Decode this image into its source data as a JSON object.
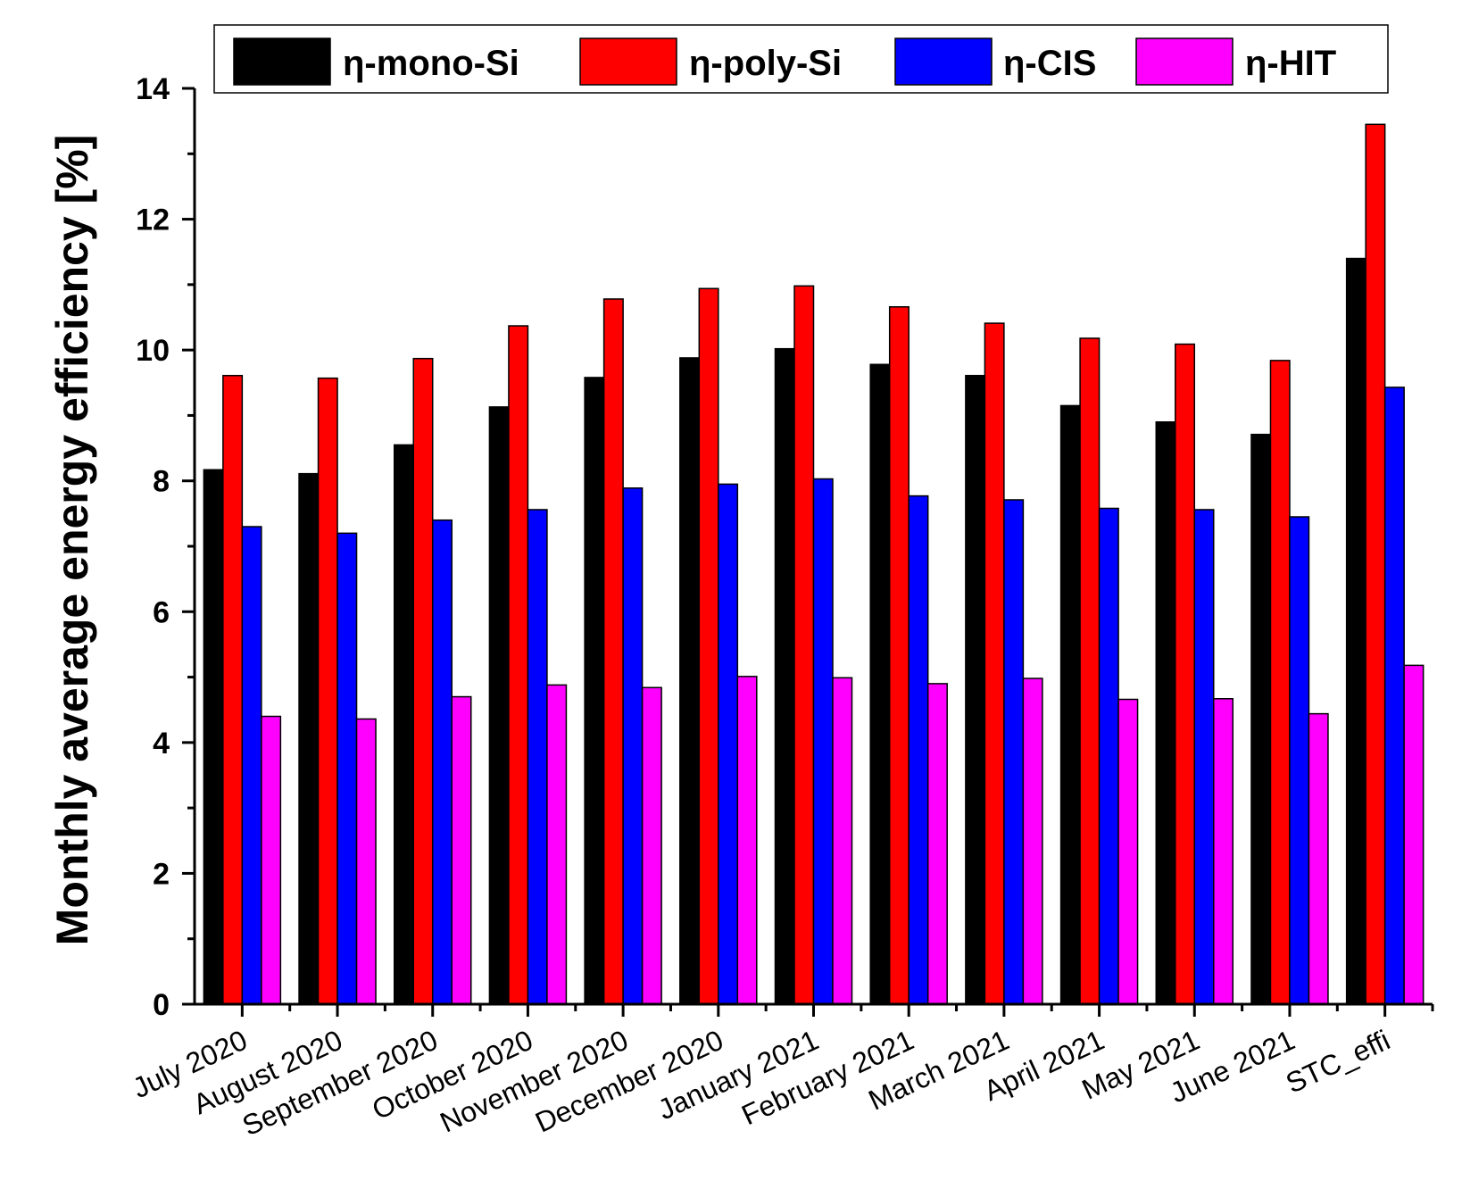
{
  "chart_data": {
    "type": "bar",
    "title": "",
    "xlabel": "",
    "ylabel": "Monthly average energy efficiency [%]",
    "ylim": [
      0,
      14
    ],
    "yticks": [
      0,
      2,
      4,
      6,
      8,
      10,
      12,
      14
    ],
    "legend_position": "top",
    "categories": [
      "July 2020",
      "August 2020",
      "September 2020",
      "October 2020",
      "November 2020",
      "December 2020",
      "January 2021",
      "February 2021",
      "March 2021",
      "April 2021",
      "May 2021",
      "June 2021",
      "STC_effi"
    ],
    "series": [
      {
        "name": "η-mono-Si",
        "color": "#000000",
        "values": [
          8.17,
          8.11,
          8.55,
          9.13,
          9.58,
          9.88,
          10.02,
          9.78,
          9.61,
          9.15,
          8.9,
          8.71,
          11.4
        ]
      },
      {
        "name": "η-poly-Si",
        "color": "#ff0000",
        "values": [
          9.61,
          9.57,
          9.87,
          10.37,
          10.78,
          10.94,
          10.98,
          10.66,
          10.41,
          10.18,
          10.09,
          9.84,
          13.45
        ]
      },
      {
        "name": "η-CIS",
        "color": "#0000ff",
        "values": [
          7.3,
          7.2,
          7.4,
          7.56,
          7.89,
          7.95,
          8.03,
          7.77,
          7.71,
          7.58,
          7.56,
          7.45,
          9.43
        ]
      },
      {
        "name": "η-HIT",
        "color": "#ff00ff",
        "values": [
          4.4,
          4.36,
          4.7,
          4.88,
          4.84,
          5.01,
          4.99,
          4.9,
          4.98,
          4.66,
          4.67,
          4.44,
          5.18
        ]
      }
    ]
  }
}
